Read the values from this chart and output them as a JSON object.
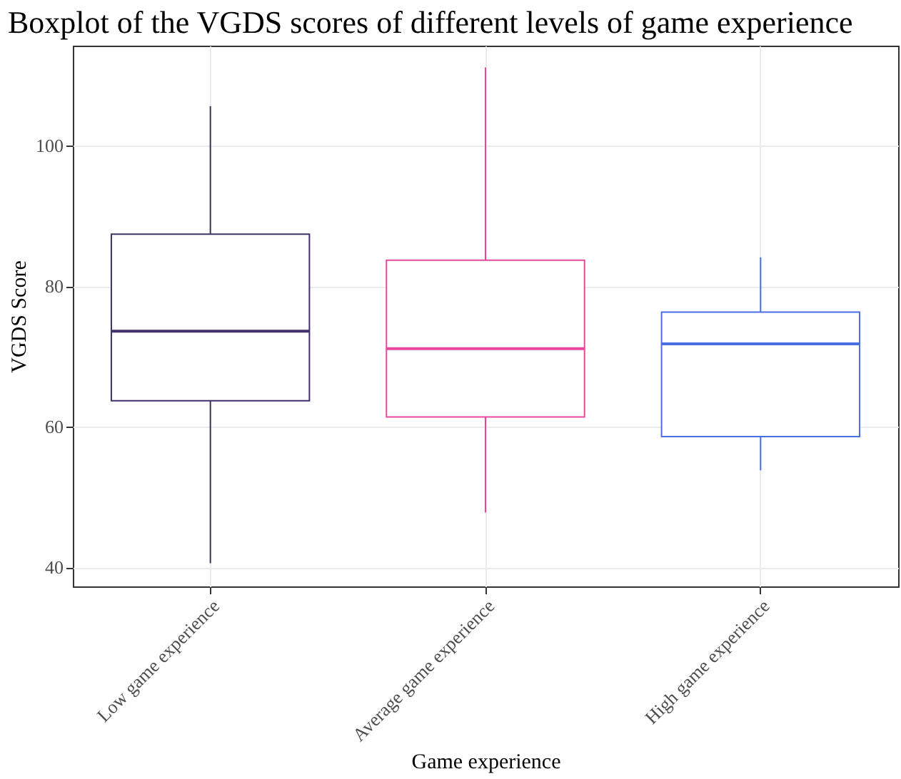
{
  "chart_data": {
    "type": "box",
    "title": "Boxplot of the VGDS scores of different levels of game experience",
    "xlabel": "Game experience",
    "ylabel": "VGDS Score",
    "categories": [
      "Low game experience",
      "Average game experience",
      "High game experience"
    ],
    "colors": [
      "#3f3068",
      "#e8489b",
      "#4a6fe3"
    ],
    "boxes": [
      {
        "low": 40.6,
        "q1": 63.7,
        "median": 73.6,
        "q3": 87.4,
        "high": 105.6
      },
      {
        "low": 47.8,
        "q1": 61.4,
        "median": 71.1,
        "q3": 83.7,
        "high": 111.1
      },
      {
        "low": 53.8,
        "q1": 58.6,
        "median": 71.8,
        "q3": 76.3,
        "high": 84.1
      }
    ],
    "ylim": [
      37.3,
      114.2
    ],
    "yticks": [
      40,
      60,
      80,
      100
    ],
    "grid": true
  }
}
